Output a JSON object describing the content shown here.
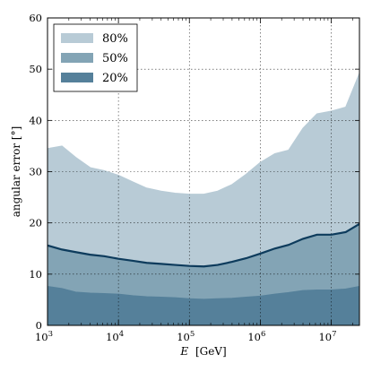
{
  "chart_data": {
    "type": "area",
    "xscale": "log",
    "xlim": [
      1000,
      25000000
    ],
    "ylim": [
      0,
      60
    ],
    "grid": true,
    "legend_position": "top-left",
    "xlabel": {
      "var": "E",
      "unit": "[GeV]"
    },
    "ylabel": "angular error [°]",
    "xticks": [
      {
        "value": 1000,
        "base": "10",
        "exp": "3"
      },
      {
        "value": 10000,
        "base": "10",
        "exp": "4"
      },
      {
        "value": 100000,
        "base": "10",
        "exp": "5"
      },
      {
        "value": 1000000,
        "base": "10",
        "exp": "6"
      },
      {
        "value": 10000000,
        "base": "10",
        "exp": "7"
      }
    ],
    "yticks": [
      0,
      10,
      20,
      30,
      40,
      50,
      60
    ],
    "x": [
      1000,
      1600,
      2500,
      4000,
      6300,
      10000,
      16000,
      25000,
      40000,
      63000,
      100000,
      160000,
      250000,
      400000,
      630000,
      1000000,
      1600000,
      2500000,
      4000000,
      6300000,
      10000000,
      16000000,
      25000000
    ],
    "series": [
      {
        "name": "80%",
        "color": "#b8cbd6",
        "values": [
          34.5,
          35.0,
          32.8,
          30.8,
          30.2,
          29.3,
          28.0,
          26.8,
          26.2,
          25.8,
          25.6,
          25.6,
          26.2,
          27.5,
          29.5,
          31.8,
          33.5,
          34.2,
          38.5,
          41.3,
          41.8,
          42.6,
          49.2
        ]
      },
      {
        "name": "50%",
        "color": "#83a4b5",
        "line_color": "#0d3b5c",
        "values": [
          15.6,
          14.8,
          14.3,
          13.8,
          13.5,
          13.0,
          12.6,
          12.2,
          12.0,
          11.8,
          11.6,
          11.5,
          11.8,
          12.4,
          13.1,
          14.0,
          15.0,
          15.7,
          16.9,
          17.7,
          17.7,
          18.2,
          19.8
        ]
      },
      {
        "name": "20%",
        "color": "#55809a",
        "values": [
          7.6,
          7.2,
          6.5,
          6.3,
          6.2,
          6.1,
          5.8,
          5.6,
          5.5,
          5.4,
          5.2,
          5.1,
          5.2,
          5.3,
          5.5,
          5.7,
          6.1,
          6.4,
          6.8,
          6.9,
          6.9,
          7.1,
          7.6
        ]
      }
    ]
  }
}
